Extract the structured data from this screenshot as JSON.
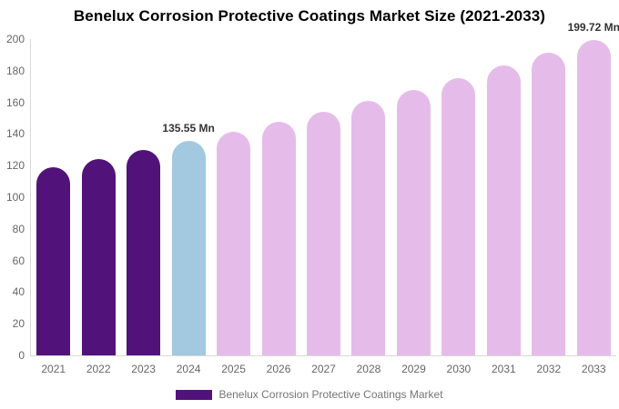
{
  "title": "Benelux Corrosion Protective Coatings Market Size (2021-2033)",
  "legend": {
    "label": "Benelux Corrosion Protective Coatings Market",
    "swatch_color": "#511379"
  },
  "colors": {
    "historical_bar": "#511379",
    "base_year_bar": "#A2C9DF",
    "forecast_bar": "#E5BCE9",
    "axis_line": "#d9d9d9",
    "tick_text": "#666666",
    "annotation_text": "#333333"
  },
  "chart_data": {
    "type": "bar",
    "title": "Benelux Corrosion Protective Coatings Market Size (2021-2033)",
    "xlabel": "",
    "ylabel": "",
    "categories": [
      "2021",
      "2022",
      "2023",
      "2024",
      "2025",
      "2026",
      "2027",
      "2028",
      "2029",
      "2030",
      "2031",
      "2032",
      "2033"
    ],
    "values": [
      119.1,
      124.4,
      129.8,
      135.55,
      141.5,
      147.8,
      154.3,
      161.0,
      168.1,
      175.5,
      183.3,
      191.3,
      199.72
    ],
    "unit": "Mn",
    "bar_colors": [
      "#511379",
      "#511379",
      "#511379",
      "#A2C9DF",
      "#E5BCE9",
      "#E5BCE9",
      "#E5BCE9",
      "#E5BCE9",
      "#E5BCE9",
      "#E5BCE9",
      "#E5BCE9",
      "#E5BCE9",
      "#E5BCE9"
    ],
    "annotations": [
      {
        "index": 3,
        "text": "135.55 Mn"
      },
      {
        "index": 12,
        "text": "199.72 Mn"
      }
    ],
    "ylim": [
      0,
      200
    ],
    "ytick_step": 20,
    "grid": false,
    "legend_position": "bottom",
    "legend_entries": [
      "Benelux Corrosion Protective Coatings Market"
    ]
  }
}
